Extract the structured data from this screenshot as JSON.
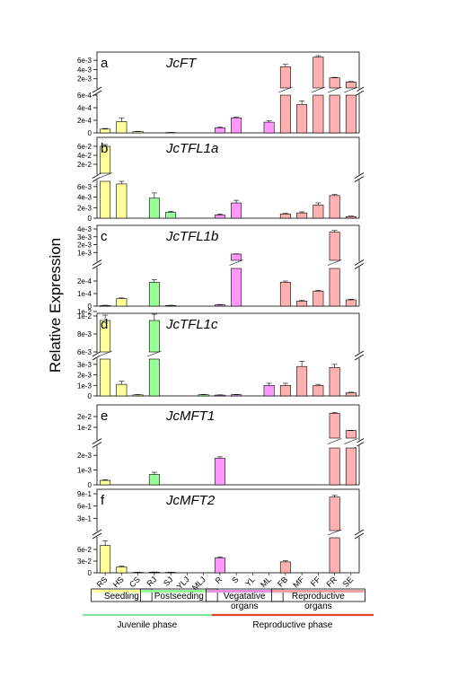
{
  "chart_data": {
    "type": "bar",
    "ylabel": "Relative Expression",
    "categories": [
      "RS",
      "HS",
      "CS",
      "RJ",
      "SJ",
      "YLJ",
      "MLJ",
      "R",
      "S",
      "YL",
      "ML",
      "FB",
      "MF",
      "FF",
      "FR",
      "SE"
    ],
    "category_groups": [
      {
        "label": "Seedling",
        "color": "#ffff99",
        "from": 0,
        "to": 2
      },
      {
        "label": "Postseeding",
        "color": "#99ff99",
        "from": 3,
        "to": 6
      },
      {
        "label": "Vegatative\norgans",
        "color": "#e38fe3",
        "from": 7,
        "to": 10
      },
      {
        "label": "Reproductive\norgans",
        "color": "#f0a0a0",
        "from": 11,
        "to": 15
      }
    ],
    "phases": [
      {
        "label": "Juvenile phase",
        "color": "#7fe39a"
      },
      {
        "label": "Reproductive phase",
        "color": "#e8402a"
      }
    ],
    "bar_colors": [
      "#ffff99",
      "#ffff99",
      "#ffff99",
      "#99ff99",
      "#99ff99",
      "#99ff99",
      "#99ff99",
      "#ff99ff",
      "#ff99ff",
      "#ff99ff",
      "#ff99ff",
      "#ffb0b0",
      "#ffb0b0",
      "#ffb0b0",
      "#ffb0b0",
      "#ffb0b0"
    ],
    "panels": [
      {
        "letter": "a",
        "gene": "JcFT",
        "upper": {
          "ylim": [
            0,
            0.007
          ],
          "ticks": [
            "2e-3",
            "4e-3",
            "6e-3"
          ],
          "tickvals": [
            0.002,
            0.004,
            0.006
          ]
        },
        "lower": {
          "ylim": [
            0,
            0.0006
          ],
          "ticks": [
            "0",
            "2e-4",
            "4e-4",
            "6e-4"
          ],
          "tickvals": [
            0,
            0.0002,
            0.0004,
            0.0006
          ]
        },
        "values": [
          6e-05,
          0.00018,
          2e-05,
          0,
          5e-06,
          0,
          0,
          8e-05,
          0.00024,
          0,
          0.00017,
          0.0046,
          0.00045,
          0.0067,
          0.0022,
          0.0013
        ],
        "errors": [
          1e-05,
          6e-05,
          5e-06,
          0,
          2e-06,
          0,
          0,
          1e-05,
          1e-05,
          0,
          2e-05,
          0.0005,
          6e-05,
          0.0003,
          0.0001,
          0.0001
        ]
      },
      {
        "letter": "b",
        "gene": "JcTFL1a",
        "upper": {
          "ylim": [
            0,
            0.07
          ],
          "ticks": [
            "2e-2",
            "4e-2",
            "6e-2"
          ],
          "tickvals": [
            0.02,
            0.04,
            0.06
          ]
        },
        "lower": {
          "ylim": [
            0,
            0.007
          ],
          "ticks": [
            "0",
            "2e-3",
            "4e-3",
            "6e-3"
          ],
          "tickvals": [
            0,
            0.002,
            0.004,
            0.006
          ]
        },
        "values": [
          0.06,
          0.0065,
          0,
          0.0038,
          0.0011,
          0,
          0,
          0.0006,
          0.0029,
          0,
          0,
          0.0008,
          0.001,
          0.0025,
          0.0043,
          0.0003
        ],
        "errors": [
          0.004,
          0.0012,
          0,
          0.001,
          0.0002,
          0,
          0,
          0.0002,
          0.0005,
          0,
          0,
          0.0001,
          0.0002,
          0.0004,
          0.0002,
          0.0001
        ]
      },
      {
        "letter": "c",
        "gene": "JcTFL1b",
        "upper": {
          "ylim": [
            0,
            0.004
          ],
          "ticks": [
            "1e-3",
            "2e-3",
            "3e-3",
            "4e-3"
          ],
          "tickvals": [
            0.001,
            0.002,
            0.003,
            0.004
          ]
        },
        "lower": {
          "ylim": [
            0,
            0.0003
          ],
          "ticks": [
            "0",
            "1e-4",
            "2e-4"
          ],
          "tickvals": [
            0,
            0.0001,
            0.0002
          ]
        },
        "values": [
          5e-06,
          6e-05,
          0,
          0.00019,
          5e-06,
          0,
          0,
          1e-05,
          0.0008,
          0,
          0,
          0.00019,
          4e-05,
          0.00012,
          0.0036,
          5e-05
        ],
        "errors": [
          2e-06,
          5e-06,
          0,
          2e-05,
          2e-06,
          0,
          0,
          3e-06,
          3e-05,
          0,
          0,
          1e-05,
          5e-06,
          6e-06,
          0.0002,
          5e-06
        ]
      },
      {
        "letter": "d",
        "gene": "JcTFL1c",
        "upper": {
          "ylim": [
            0.006,
            0.01
          ],
          "ticks": [
            "6e-3",
            "8e-3",
            "1e-2",
            "1e-2"
          ],
          "tickvals": [
            0.006,
            0.008,
            0.01,
            0.0105
          ]
        },
        "lower": {
          "ylim": [
            0,
            0.0035
          ],
          "ticks": [
            "0",
            "1e-3",
            "2e-3",
            "3e-3"
          ],
          "tickvals": [
            0,
            0.001,
            0.002,
            0.003
          ]
        },
        "values": [
          0.0095,
          0.0011,
          0.0001,
          0.0095,
          0,
          0,
          0.00012,
          8e-05,
          0.00012,
          0,
          0.001,
          0.001,
          0.0028,
          0.001,
          0.0027,
          0.0003
        ],
        "errors": [
          0.0006,
          0.0003,
          3e-05,
          0.0007,
          0,
          0,
          3e-05,
          2e-05,
          3e-05,
          0,
          0.0002,
          0.0002,
          0.0005,
          0.0001,
          0.0003,
          5e-05
        ]
      },
      {
        "letter": "e",
        "gene": "JcMFT1",
        "upper": {
          "ylim": [
            0,
            0.025
          ],
          "ticks": [
            "1e-2",
            "2e-2"
          ],
          "tickvals": [
            0.01,
            0.02
          ]
        },
        "lower": {
          "ylim": [
            0,
            0.0025
          ],
          "ticks": [
            "0",
            "1e-3",
            "2e-3"
          ],
          "tickvals": [
            0,
            0.001,
            0.002
          ]
        },
        "values": [
          0.0003,
          0,
          0,
          0.0007,
          0,
          0,
          0,
          0.0018,
          0,
          0,
          0,
          0,
          0,
          0,
          0.023,
          0.007
        ],
        "errors": [
          5e-05,
          0,
          0,
          0.00015,
          0,
          0,
          0,
          0.0001,
          0,
          0,
          0,
          0,
          0,
          0,
          0.0008,
          0.0003
        ]
      },
      {
        "letter": "f",
        "gene": "JcMFT2",
        "upper": {
          "ylim": [
            0,
            0.9
          ],
          "ticks": [
            "3e-1",
            "6e-1",
            "9e-1"
          ],
          "tickvals": [
            0.3,
            0.6,
            0.9
          ]
        },
        "lower": {
          "ylim": [
            0,
            0.09
          ],
          "ticks": [
            "0",
            "3e-2",
            "6e-2"
          ],
          "tickvals": [
            0,
            0.03,
            0.06
          ]
        },
        "values": [
          0.07,
          0.015,
          0.001,
          0.0015,
          0.001,
          0,
          0,
          0.038,
          0,
          0,
          0,
          0.028,
          0,
          0,
          0.82,
          0
        ],
        "errors": [
          0.012,
          0.002,
          0.0005,
          0.0005,
          0.0003,
          0,
          0,
          0.003,
          0,
          0,
          0,
          0.003,
          0,
          0,
          0.04,
          0
        ]
      }
    ]
  }
}
